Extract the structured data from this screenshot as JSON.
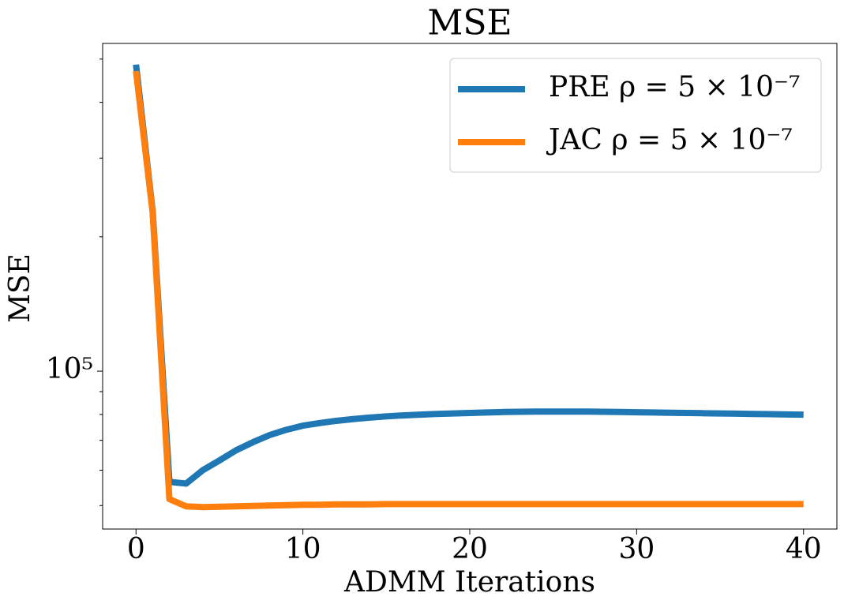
{
  "chart_data": {
    "type": "line",
    "title": "MSE",
    "x_label": "ADMM Iterations",
    "y_label": "MSE",
    "x": [
      0,
      1,
      2,
      3,
      4,
      5,
      6,
      7,
      8,
      9,
      10,
      11,
      12,
      13,
      14,
      15,
      16,
      17,
      18,
      19,
      20,
      21,
      22,
      23,
      24,
      25,
      26,
      27,
      28,
      29,
      30,
      31,
      32,
      33,
      34,
      35,
      36,
      37,
      38,
      39,
      40
    ],
    "series": [
      {
        "name": "PRE ρ = 5 × 10⁻⁷",
        "color": "#1f77b4",
        "values": [
          486000,
          228000,
          56500,
          56000,
          60000,
          63100,
          66500,
          69300,
          71900,
          73900,
          75500,
          76500,
          77400,
          78100,
          78700,
          79200,
          79600,
          79900,
          80200,
          80400,
          80600,
          80800,
          81000,
          81100,
          81200,
          81200,
          81200,
          81200,
          81100,
          81000,
          80900,
          80800,
          80700,
          80600,
          80500,
          80400,
          80300,
          80200,
          80100,
          80000,
          79900
        ]
      },
      {
        "name": "JAC ρ = 5 × 10⁻⁷",
        "color": "#ff7f0e",
        "values": [
          470000,
          226000,
          51700,
          49800,
          49600,
          49700,
          49800,
          49900,
          50000,
          50100,
          50200,
          50200,
          50300,
          50300,
          50300,
          50400,
          50400,
          50400,
          50400,
          50400,
          50400,
          50400,
          50400,
          50400,
          50400,
          50400,
          50400,
          50400,
          50400,
          50400,
          50400,
          50400,
          50400,
          50400,
          50400,
          50400,
          50400,
          50400,
          50400,
          50400,
          50400
        ]
      }
    ],
    "xlim": [
      -2,
      42
    ],
    "xticks": [
      0,
      10,
      20,
      30,
      40
    ],
    "ylim": [
      44300,
      542000
    ],
    "y_scale": "log",
    "yticks": [
      {
        "value": 100000,
        "label": "10⁵"
      }
    ],
    "yminorticks": [
      50000,
      60000,
      70000,
      80000,
      90000,
      200000,
      300000,
      400000,
      500000
    ],
    "legend": "upper right",
    "grid": false
  }
}
